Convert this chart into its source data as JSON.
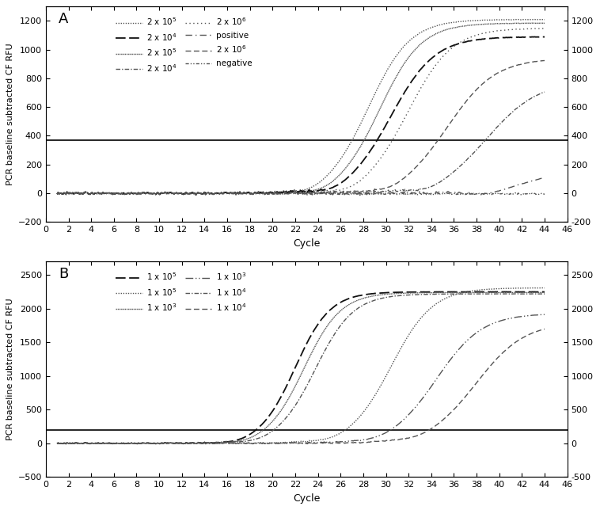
{
  "panel_A": {
    "label": "A",
    "ylabel": "PCR baseline subtracted CF RFU",
    "xlabel": "Cycle",
    "xlim": [
      0,
      46
    ],
    "ylim": [
      -200,
      1300
    ],
    "yticks": [
      -200,
      0,
      200,
      400,
      600,
      800,
      1000,
      1200
    ],
    "threshold": 370,
    "legend_left": [
      "2 x 10$^5$",
      "2 x 10$^5$",
      "2 x 10$^6$",
      "2 x 10$^6$"
    ],
    "legend_right": [
      "2 x 10$^4$",
      "2 x 10$^4$",
      "positive",
      "negative"
    ],
    "curves": [
      {
        "ct": 28.5,
        "plateau": 1210,
        "k": 0.55,
        "ls": "dotted",
        "lw": 1.0,
        "color": "#555555"
      },
      {
        "ct": 29.5,
        "plateau": 1185,
        "k": 0.55,
        "ls": "densely_dotted",
        "lw": 1.0,
        "color": "#555555"
      },
      {
        "ct": 32.0,
        "plateau": 1150,
        "k": 0.52,
        "ls": "loosely_dotted",
        "lw": 1.0,
        "color": "#555555"
      },
      {
        "ct": 35.5,
        "plateau": 940,
        "k": 0.48,
        "ls": "dashed",
        "lw": 1.0,
        "color": "#555555"
      },
      {
        "ct": 30.5,
        "plateau": 1090,
        "k": 0.52,
        "ls": "long_dash",
        "lw": 1.3,
        "color": "#111111"
      },
      {
        "ct": 39.0,
        "plateau": 780,
        "k": 0.45,
        "ls": "dashdot",
        "lw": 1.0,
        "color": "#555555"
      },
      {
        "ct": 44.0,
        "plateau": 220,
        "k": 0.4,
        "ls": "loosely_dashdot",
        "lw": 1.0,
        "color": "#555555"
      },
      {
        "ct": 999,
        "plateau": 0,
        "k": 0.0,
        "ls": "dashdotdot",
        "lw": 1.0,
        "color": "#555555"
      }
    ]
  },
  "panel_B": {
    "label": "B",
    "ylabel": "PCR baseline subtracted CF RFU",
    "xlabel": "Cycle",
    "xlim": [
      0,
      46
    ],
    "ylim": [
      -500,
      2700
    ],
    "yticks": [
      -500,
      0,
      500,
      1000,
      1500,
      2000,
      2500
    ],
    "threshold": 200,
    "legend_left": [
      "1 x 10$^5$",
      "1 x 10$^3$",
      "1 x 10$^4$"
    ],
    "legend_right": [
      "1 x 10$^5$",
      "1 x 10$^3$",
      "1 x 10$^4$"
    ],
    "curves": [
      {
        "ct": 22.0,
        "plateau": 2250,
        "k": 0.65,
        "ls": "long_dash",
        "lw": 1.3,
        "color": "#111111"
      },
      {
        "ct": 22.8,
        "plateau": 2240,
        "k": 0.62,
        "ls": "densely_dotted",
        "lw": 1.0,
        "color": "#555555"
      },
      {
        "ct": 23.8,
        "plateau": 2220,
        "k": 0.6,
        "ls": "dashdot",
        "lw": 1.0,
        "color": "#555555"
      },
      {
        "ct": 30.5,
        "plateau": 2310,
        "k": 0.55,
        "ls": "dotted",
        "lw": 1.0,
        "color": "#555555"
      },
      {
        "ct": 34.5,
        "plateau": 1930,
        "k": 0.5,
        "ls": "long_dashdotdot",
        "lw": 1.0,
        "color": "#555555"
      },
      {
        "ct": 38.0,
        "plateau": 1800,
        "k": 0.47,
        "ls": "dashed",
        "lw": 1.0,
        "color": "#555555"
      }
    ]
  }
}
